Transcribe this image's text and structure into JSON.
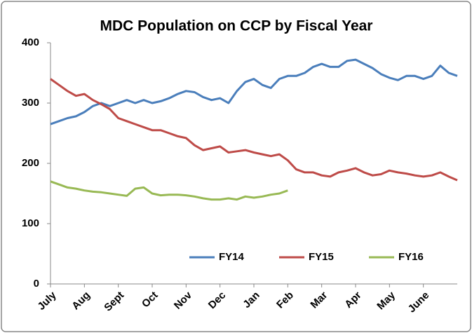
{
  "chart_data": {
    "type": "line",
    "title": "MDC Population on CCP by Fiscal Year",
    "xlim": [
      0,
      12
    ],
    "xticks": [
      {
        "value": 0,
        "label": "July"
      },
      {
        "value": 1,
        "label": "Aug"
      },
      {
        "value": 2,
        "label": "Sept"
      },
      {
        "value": 3,
        "label": "Oct"
      },
      {
        "value": 4,
        "label": "Nov"
      },
      {
        "value": 5,
        "label": "Dec"
      },
      {
        "value": 6,
        "label": "Jan"
      },
      {
        "value": 7,
        "label": "Feb"
      },
      {
        "value": 8,
        "label": "Mar"
      },
      {
        "value": 9,
        "label": "Apr"
      },
      {
        "value": 10,
        "label": "May"
      },
      {
        "value": 11,
        "label": "June"
      }
    ],
    "ylim": [
      0,
      400
    ],
    "yticks": [
      0,
      100,
      200,
      300,
      400
    ],
    "grid": false,
    "legend": "lower right",
    "series": [
      {
        "name": "FY14",
        "color": "#4a7ebb",
        "x": [
          0,
          0.25,
          0.5,
          0.75,
          1,
          1.25,
          1.5,
          1.75,
          2,
          2.25,
          2.5,
          2.75,
          3,
          3.25,
          3.5,
          3.75,
          4,
          4.25,
          4.5,
          4.75,
          5,
          5.25,
          5.5,
          5.75,
          6,
          6.25,
          6.5,
          6.75,
          7,
          7.25,
          7.5,
          7.75,
          8,
          8.25,
          8.5,
          8.75,
          9,
          9.25,
          9.5,
          9.75,
          10,
          10.25,
          10.5,
          10.75,
          11,
          11.25,
          11.5,
          11.75,
          12
        ],
        "values": [
          265,
          270,
          275,
          278,
          285,
          295,
          300,
          295,
          300,
          305,
          300,
          305,
          300,
          303,
          308,
          315,
          320,
          318,
          310,
          305,
          308,
          300,
          320,
          335,
          340,
          330,
          325,
          340,
          345,
          345,
          350,
          360,
          365,
          360,
          360,
          370,
          372,
          365,
          358,
          348,
          342,
          338,
          345,
          345,
          340,
          345,
          362,
          350,
          345
        ]
      },
      {
        "name": "FY15",
        "color": "#be4b48",
        "x": [
          0,
          0.25,
          0.5,
          0.75,
          1,
          1.25,
          1.5,
          1.75,
          2,
          2.25,
          2.5,
          2.75,
          3,
          3.25,
          3.5,
          3.75,
          4,
          4.25,
          4.5,
          4.75,
          5,
          5.25,
          5.5,
          5.75,
          6,
          6.25,
          6.5,
          6.75,
          7,
          7.25,
          7.5,
          7.75,
          8,
          8.25,
          8.5,
          8.75,
          9,
          9.25,
          9.5,
          9.75,
          10,
          10.25,
          10.5,
          10.75,
          11,
          11.25,
          11.5,
          11.75,
          12
        ],
        "values": [
          340,
          330,
          320,
          312,
          315,
          305,
          298,
          290,
          275,
          270,
          265,
          260,
          255,
          255,
          250,
          245,
          242,
          230,
          222,
          225,
          228,
          218,
          220,
          222,
          218,
          215,
          212,
          215,
          205,
          190,
          185,
          185,
          180,
          178,
          185,
          188,
          192,
          185,
          180,
          182,
          188,
          185,
          183,
          180,
          178,
          180,
          185,
          178,
          172
        ]
      },
      {
        "name": "FY16",
        "color": "#98b954",
        "x": [
          0,
          0.25,
          0.5,
          0.75,
          1,
          1.25,
          1.5,
          1.75,
          2,
          2.25,
          2.5,
          2.75,
          3,
          3.25,
          3.5,
          3.75,
          4,
          4.25,
          4.5,
          4.75,
          5,
          5.25,
          5.5,
          5.75,
          6,
          6.25,
          6.5,
          6.75,
          7
        ],
        "values": [
          170,
          165,
          160,
          158,
          155,
          153,
          152,
          150,
          148,
          146,
          158,
          160,
          150,
          147,
          148,
          148,
          147,
          145,
          142,
          140,
          140,
          142,
          140,
          145,
          143,
          145,
          148,
          150,
          155
        ]
      }
    ]
  }
}
